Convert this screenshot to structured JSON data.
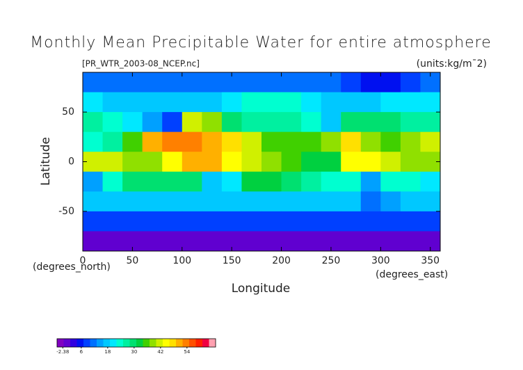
{
  "chart_data": {
    "type": "heatmap",
    "title": "Monthly Mean Precipitable Water for entire atmosphere",
    "source": "[PR_WTR_2003-08_NCEP.nc]",
    "units": "(units:kg/m¯2)",
    "xlabel": "Longitude",
    "ylabel": "Latitude",
    "xunit": "(degrees_east)",
    "yunit": "(degrees_north)",
    "xlim": [
      0,
      360
    ],
    "ylim": [
      -90,
      90
    ],
    "xticks": [
      0,
      50,
      100,
      150,
      200,
      250,
      300,
      350
    ],
    "yticks": [
      -50,
      0,
      50
    ],
    "x": [
      10,
      30,
      50,
      70,
      90,
      110,
      130,
      150,
      170,
      190,
      210,
      230,
      250,
      270,
      290,
      310,
      330,
      350
    ],
    "y": [
      80,
      60,
      40,
      20,
      0,
      -20,
      -40,
      -60,
      -80
    ],
    "values": [
      [
        12,
        12,
        12,
        12,
        12,
        12,
        12,
        12,
        12,
        12,
        12,
        12,
        12,
        9,
        6,
        6,
        9,
        12
      ],
      [
        21,
        18,
        18,
        18,
        18,
        18,
        18,
        21,
        24,
        24,
        24,
        21,
        18,
        18,
        18,
        21,
        21,
        21
      ],
      [
        27,
        24,
        21,
        15,
        9,
        42,
        39,
        30,
        27,
        27,
        27,
        24,
        18,
        30,
        30,
        30,
        27,
        27
      ],
      [
        24,
        27,
        36,
        51,
        54,
        54,
        51,
        48,
        42,
        36,
        36,
        36,
        39,
        48,
        39,
        36,
        39,
        42
      ],
      [
        42,
        42,
        39,
        39,
        45,
        51,
        51,
        45,
        42,
        39,
        36,
        33,
        33,
        45,
        45,
        42,
        39,
        39
      ],
      [
        15,
        24,
        30,
        30,
        30,
        30,
        18,
        21,
        33,
        33,
        30,
        27,
        24,
        24,
        15,
        24,
        24,
        21
      ],
      [
        18,
        18,
        18,
        18,
        18,
        18,
        18,
        18,
        18,
        18,
        18,
        18,
        18,
        18,
        12,
        15,
        18,
        18
      ],
      [
        9,
        9,
        9,
        9,
        9,
        9,
        9,
        9,
        9,
        9,
        9,
        9,
        9,
        9,
        9,
        9,
        9,
        9
      ],
      [
        -2,
        -2,
        -2,
        -2,
        -2,
        -2,
        -2,
        -2,
        -2,
        -2,
        -2,
        -2,
        -2,
        -2,
        -2,
        -2,
        -2,
        -2
      ]
    ],
    "colorbar": {
      "clim": [
        -5,
        67
      ],
      "ticks": [
        -2.38,
        6,
        18,
        30,
        42,
        54
      ],
      "colors": [
        "#8000c0",
        "#6000d0",
        "#3000e0",
        "#0010f0",
        "#0040ff",
        "#0070ff",
        "#00a0ff",
        "#00c8ff",
        "#00e8ff",
        "#00ffd0",
        "#00f0a0",
        "#00e070",
        "#00d040",
        "#40d000",
        "#90e000",
        "#d0f000",
        "#ffff00",
        "#ffe000",
        "#ffb000",
        "#ff8000",
        "#ff5000",
        "#ff2000",
        "#f00040",
        "#ffa0b0"
      ]
    }
  }
}
